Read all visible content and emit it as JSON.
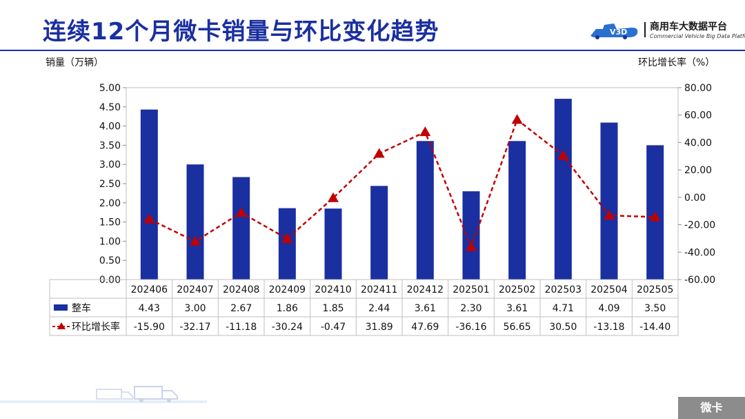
{
  "page": {
    "title": "连续12个月微卡销量与环比变化趋势",
    "badge": "微卡"
  },
  "logo": {
    "mark_text": "V3D",
    "name_cn": "商用车大数据平台",
    "name_en": "Commercial Vehicle Big Data Platform"
  },
  "colors": {
    "title": "#1a2fa0",
    "bar": "#1a2fa0",
    "line": "#c00000",
    "badge": "#8c8c8c"
  },
  "chart_data": {
    "type": "bar",
    "categories": [
      "202406",
      "202407",
      "202408",
      "202409",
      "202410",
      "202411",
      "202412",
      "202501",
      "202502",
      "202503",
      "202504",
      "202505"
    ],
    "series": [
      {
        "name": "整车",
        "type": "bar",
        "axis": "left",
        "values": [
          4.43,
          3.0,
          2.67,
          1.86,
          1.85,
          2.44,
          3.61,
          2.3,
          3.61,
          4.71,
          4.09,
          3.5
        ]
      },
      {
        "name": "环比增长率",
        "type": "line",
        "axis": "right",
        "style": "dashed",
        "marker": "triangle",
        "values": [
          -15.9,
          -32.17,
          -11.18,
          -30.24,
          -0.47,
          31.89,
          47.69,
          -36.16,
          56.65,
          30.5,
          -13.18,
          -14.4
        ]
      }
    ],
    "ylabel": "销量（万辆）",
    "y2label": "环比增长率（%）",
    "ylim": [
      0,
      5
    ],
    "y2lim": [
      -60,
      80
    ],
    "yticks": [
      "5.00",
      "4.50",
      "4.00",
      "3.50",
      "3.00",
      "2.50",
      "2.00",
      "1.50",
      "1.00",
      "0.50",
      "0.00"
    ],
    "y2ticks": [
      "80.00",
      "60.00",
      "40.00",
      "20.00",
      "0.00",
      "-20.00",
      "-40.00",
      "-60.00"
    ],
    "table_values": {
      "bar": [
        "4.43",
        "3.00",
        "2.67",
        "1.86",
        "1.85",
        "2.44",
        "3.61",
        "2.30",
        "3.61",
        "4.71",
        "4.09",
        "3.50"
      ],
      "line": [
        "-15.90",
        "-32.17",
        "-11.18",
        "-30.24",
        "-0.47",
        "31.89",
        "47.69",
        "-36.16",
        "56.65",
        "30.50",
        "-13.18",
        "-14.40"
      ]
    },
    "grid": false,
    "legend": "data-table"
  }
}
